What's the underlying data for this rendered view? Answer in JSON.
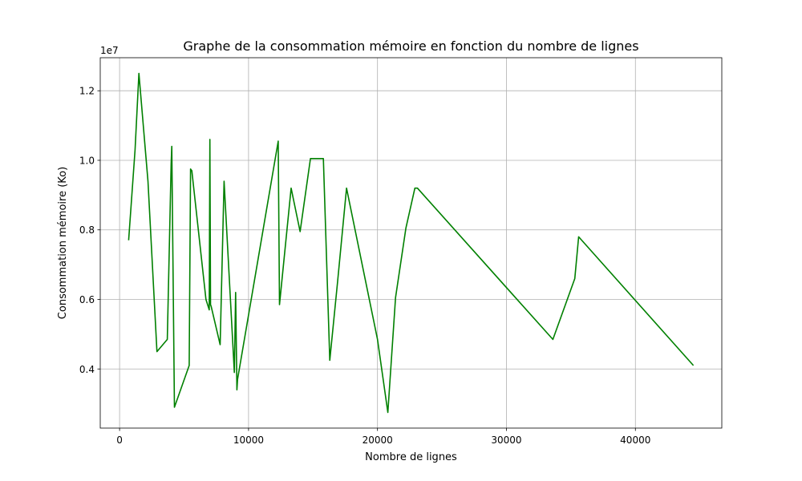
{
  "chart_data": {
    "type": "line",
    "title": "Graphe de la consommation mémoire en fonction du nombre de lignes",
    "xlabel": "Nombre de lignes",
    "ylabel": "Consommation mémoire (Ko)",
    "y_offset_text": "1e7",
    "xlim": [
      -1500,
      46700
    ],
    "ylim": [
      2300000,
      12950000
    ],
    "x_ticks": [
      0,
      10000,
      20000,
      30000,
      40000
    ],
    "x_tick_labels": [
      "0",
      "10000",
      "20000",
      "30000",
      "40000"
    ],
    "y_ticks": [
      4000000,
      6000000,
      8000000,
      10000000,
      12000000
    ],
    "y_tick_labels": [
      "0.4",
      "0.6",
      "0.8",
      "1.0",
      "1.2"
    ],
    "grid": true,
    "series": [
      {
        "color": "#008000",
        "x": [
          700,
          1200,
          1500,
          2200,
          2900,
          3700,
          4000,
          4050,
          4250,
          5400,
          5500,
          5600,
          6700,
          6950,
          7000,
          7050,
          7100,
          7800,
          8100,
          8900,
          9000,
          9100,
          9150,
          12300,
          12400,
          13300,
          14000,
          14800,
          15800,
          16300,
          16900,
          17600,
          20000,
          20800,
          21400,
          22200,
          22900,
          23100,
          33600,
          35300,
          35600,
          44500
        ],
        "y": [
          7700000,
          10300000,
          12500000,
          9400000,
          4500000,
          4850000,
          9900000,
          10400000,
          2900000,
          4100000,
          9750000,
          9700000,
          6000000,
          5700000,
          10600000,
          5850000,
          5800000,
          4700000,
          9400000,
          3900000,
          6200000,
          3400000,
          3700000,
          10550000,
          5850000,
          9200000,
          7950000,
          10050000,
          10050000,
          4250000,
          6500000,
          9200000,
          4850000,
          2750000,
          6050000,
          8050000,
          9200000,
          9200000,
          4850000,
          6600000,
          7800000,
          4100000
        ]
      }
    ]
  }
}
